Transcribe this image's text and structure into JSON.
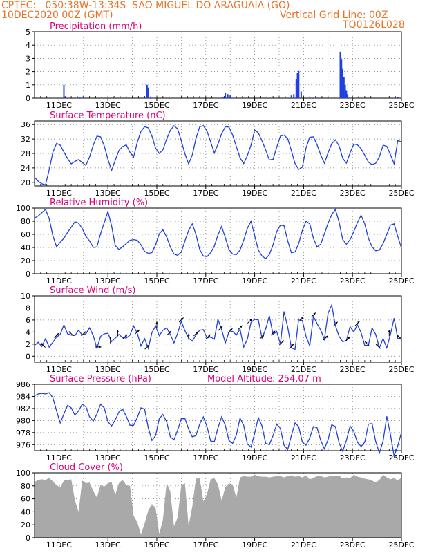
{
  "header": {
    "line1": "CPTEC:   050:38W-13:34S  SAO MIGUEL DO ARAGUAIA (GO)",
    "line2_left": "10DEC2020 00Z (GMT)",
    "line2_right": "Vertical Grid Line: 00Z",
    "line3_right": "TQ0126L028"
  },
  "colors": {
    "title": "#e0007a",
    "header": "#e8742a",
    "line": "#1f3fe0",
    "bar": "#1f3fe0",
    "cloud": "#a9a9a9",
    "arrow": "#000000"
  },
  "x_ticks": [
    "11DEC",
    "13DEC",
    "15DEC",
    "17DEC",
    "19DEC",
    "21DEC",
    "23DEC",
    "25DEC"
  ],
  "chart_data": [
    {
      "id": "precip",
      "type": "bar",
      "title": "Precipitation (mm/h)",
      "ylim": [
        0,
        5
      ],
      "yticks": [
        0,
        1,
        2,
        3,
        4,
        5
      ],
      "x_days": [
        1.2,
        1.85,
        2.0,
        4.6,
        4.65,
        7.7,
        7.8,
        7.9,
        8.0,
        10.5,
        10.6,
        10.7,
        10.75,
        10.8,
        10.9,
        11.5,
        12.5,
        12.55,
        12.6,
        12.65,
        12.7,
        12.75,
        12.8,
        14.85
      ],
      "values": [
        1.0,
        0.05,
        0.15,
        1.0,
        0.8,
        0.1,
        0.4,
        0.3,
        0.2,
        0.2,
        0.3,
        1.4,
        1.9,
        2.1,
        0.5,
        0.15,
        3.5,
        2.9,
        2.2,
        1.6,
        1.0,
        0.6,
        0.3,
        0.1
      ]
    },
    {
      "id": "temp",
      "type": "line",
      "title": "Surface Temperature (nC)",
      "ylim": [
        19,
        37
      ],
      "yticks": [
        20,
        24,
        28,
        32,
        36
      ],
      "x_days": [
        0.0,
        0.15,
        0.3,
        0.45,
        0.6,
        0.75,
        0.9,
        1.05,
        1.2,
        1.35,
        1.5,
        1.65,
        1.8,
        1.95,
        2.1,
        2.25,
        2.4,
        2.55,
        2.7,
        2.85,
        3.0,
        3.15,
        3.3,
        3.45,
        3.6,
        3.75,
        3.9,
        4.05,
        4.2,
        4.35,
        4.5,
        4.65,
        4.8,
        4.95,
        5.1,
        5.25,
        5.4,
        5.55,
        5.7,
        5.85,
        6.0,
        6.15,
        6.3,
        6.45,
        6.6,
        6.75,
        6.9,
        7.05,
        7.2,
        7.35,
        7.5,
        7.65,
        7.8,
        7.95,
        8.1,
        8.25,
        8.4,
        8.55,
        8.7,
        8.85,
        9.0,
        9.15,
        9.3,
        9.45,
        9.6,
        9.75,
        9.9,
        10.05,
        10.2,
        10.35,
        10.5,
        10.65,
        10.8,
        10.95,
        11.1,
        11.25,
        11.4,
        11.55,
        11.7,
        11.85,
        12.0,
        12.15,
        12.3,
        12.45,
        12.6,
        12.75,
        12.9,
        13.05,
        13.2,
        13.35,
        13.5,
        13.65,
        13.8,
        13.95,
        14.1,
        14.25,
        14.4,
        14.55,
        14.7,
        14.85,
        15.0
      ],
      "values": [
        21.4,
        20.3,
        19.6,
        19.3,
        23.5,
        28.3,
        30.8,
        30.3,
        28.4,
        26.6,
        25.1,
        25.8,
        26.3,
        25.5,
        24.7,
        27.0,
        30.3,
        32.8,
        32.6,
        30.1,
        26.4,
        23.3,
        26.1,
        28.8,
        29.9,
        30.4,
        28.3,
        27.0,
        31.1,
        34.1,
        35.4,
        35.1,
        32.8,
        29.5,
        28.0,
        29.0,
        32.0,
        34.4,
        35.7,
        34.8,
        31.5,
        27.9,
        25.1,
        27.6,
        32.1,
        35.4,
        35.7,
        34.2,
        31.2,
        28.1,
        30.6,
        33.5,
        35.4,
        35.3,
        33.1,
        29.9,
        26.8,
        25.2,
        27.4,
        30.3,
        34.5,
        33.7,
        31.5,
        29.0,
        26.2,
        26.4,
        29.7,
        32.8,
        33.1,
        32.1,
        28.8,
        25.2,
        23.6,
        24.2,
        29.5,
        32.5,
        32.6,
        30.4,
        27.6,
        25.3,
        28.2,
        30.7,
        31.8,
        30.1,
        26.7,
        25.3,
        28.2,
        30.6,
        30.4,
        29.3,
        27.5,
        25.6,
        24.9,
        25.3,
        27.1,
        30.3,
        30.0,
        27.7,
        25.1,
        31.6,
        31.2
      ]
    },
    {
      "id": "rh",
      "type": "line",
      "title": "Relative Humidity (%)",
      "ylim": [
        0,
        100
      ],
      "yticks": [
        0,
        20,
        40,
        60,
        80,
        100
      ],
      "x_days": [
        0.0,
        0.15,
        0.3,
        0.45,
        0.6,
        0.75,
        0.9,
        1.05,
        1.2,
        1.35,
        1.5,
        1.65,
        1.8,
        1.95,
        2.1,
        2.25,
        2.4,
        2.55,
        2.7,
        2.85,
        3.0,
        3.15,
        3.3,
        3.45,
        3.6,
        3.75,
        3.9,
        4.05,
        4.2,
        4.35,
        4.5,
        4.65,
        4.8,
        4.95,
        5.1,
        5.25,
        5.4,
        5.55,
        5.7,
        5.85,
        6.0,
        6.15,
        6.3,
        6.45,
        6.6,
        6.75,
        6.9,
        7.05,
        7.2,
        7.35,
        7.5,
        7.65,
        7.8,
        7.95,
        8.1,
        8.25,
        8.4,
        8.55,
        8.7,
        8.85,
        9.0,
        9.15,
        9.3,
        9.45,
        9.6,
        9.75,
        9.9,
        10.05,
        10.2,
        10.35,
        10.5,
        10.65,
        10.8,
        10.95,
        11.1,
        11.25,
        11.4,
        11.55,
        11.7,
        11.85,
        12.0,
        12.15,
        12.3,
        12.45,
        12.6,
        12.75,
        12.9,
        13.05,
        13.2,
        13.35,
        13.5,
        13.65,
        13.8,
        13.95,
        14.1,
        14.25,
        14.4,
        14.55,
        14.7,
        14.85,
        15.0
      ],
      "values": [
        85,
        88,
        93,
        98,
        84,
        58,
        41,
        48,
        54,
        63,
        71,
        79,
        77,
        69,
        57,
        50,
        40,
        41,
        61,
        78,
        95,
        73,
        43,
        37,
        41,
        46,
        51,
        52,
        51,
        44,
        34,
        31,
        32,
        44,
        61,
        67,
        56,
        41,
        30,
        28,
        33,
        50,
        66,
        76,
        60,
        37,
        27,
        26,
        32,
        42,
        59,
        72,
        55,
        37,
        30,
        29,
        36,
        51,
        69,
        80,
        58,
        36,
        27,
        23,
        29,
        44,
        64,
        74,
        73,
        50,
        32,
        33,
        46,
        66,
        80,
        76,
        54,
        41,
        45,
        61,
        77,
        90,
        98,
        79,
        52,
        45,
        52,
        64,
        78,
        89,
        76,
        54,
        41,
        35,
        36,
        46,
        60,
        74,
        76,
        57,
        39
      ]
    },
    {
      "id": "wind",
      "type": "line",
      "title": "Surface Wind (m/s)",
      "ylim": [
        -1,
        10
      ],
      "yticks": [
        0,
        2,
        4,
        6,
        8,
        10
      ],
      "x_days": [
        0.0,
        0.15,
        0.3,
        0.45,
        0.6,
        0.75,
        0.9,
        1.05,
        1.2,
        1.35,
        1.5,
        1.65,
        1.8,
        1.95,
        2.1,
        2.25,
        2.4,
        2.55,
        2.7,
        2.85,
        3.0,
        3.15,
        3.3,
        3.45,
        3.6,
        3.75,
        3.9,
        4.05,
        4.2,
        4.35,
        4.5,
        4.65,
        4.8,
        4.95,
        5.1,
        5.25,
        5.4,
        5.55,
        5.7,
        5.85,
        6.0,
        6.15,
        6.3,
        6.45,
        6.6,
        6.75,
        6.9,
        7.05,
        7.2,
        7.35,
        7.5,
        7.65,
        7.8,
        7.95,
        8.1,
        8.25,
        8.4,
        8.55,
        8.7,
        8.85,
        9.0,
        9.15,
        9.3,
        9.45,
        9.6,
        9.75,
        9.9,
        10.05,
        10.2,
        10.35,
        10.5,
        10.65,
        10.8,
        10.95,
        11.1,
        11.25,
        11.4,
        11.55,
        11.7,
        11.85,
        12.0,
        12.15,
        12.3,
        12.45,
        12.6,
        12.75,
        12.9,
        13.05,
        13.2,
        13.35,
        13.5,
        13.65,
        13.8,
        13.95,
        14.1,
        14.25,
        14.4,
        14.55,
        14.7,
        14.85,
        15.0
      ],
      "values": [
        1.8,
        2.3,
        1.6,
        2.9,
        1.5,
        2.3,
        3.2,
        3.6,
        5.2,
        3.7,
        3.5,
        3.4,
        4.3,
        3.5,
        3.7,
        4.7,
        3.4,
        1.3,
        3.3,
        3.7,
        3.8,
        2.4,
        3.0,
        3.6,
        3.1,
        3.0,
        3.5,
        5.0,
        3.8,
        1.7,
        2.9,
        1.3,
        3.9,
        5.0,
        3.4,
        4.3,
        4.7,
        3.6,
        2.2,
        3.8,
        5.8,
        4.2,
        3.0,
        2.5,
        3.5,
        4.3,
        4.4,
        3.0,
        3.2,
        2.8,
        6.1,
        4.4,
        2.2,
        4.0,
        4.1,
        3.5,
        4.5,
        1.5,
        2.8,
        5.6,
        6.1,
        6.0,
        3.0,
        4.5,
        6.7,
        3.6,
        4.1,
        2.0,
        7.4,
        4.8,
        1.4,
        1.1,
        6.2,
        5.9,
        3.3,
        1.7,
        6.6,
        5.4,
        4.3,
        2.8,
        7.1,
        8.5,
        5.1,
        3.3,
        2.4,
        2.6,
        4.9,
        4.0,
        5.2,
        3.9,
        1.8,
        1.8,
        4.7,
        3.6,
        1.4,
        2.9,
        1.4,
        3.6,
        6.3,
        2.9,
        3.1
      ],
      "arrow_days": [
        0.35,
        0.9,
        1.5,
        2.0,
        2.6,
        3.1,
        3.4,
        3.7,
        4.2,
        4.6,
        5.0,
        5.5,
        6.0,
        6.3,
        6.6,
        7.1,
        7.6,
        8.0,
        8.4,
        8.8,
        9.3,
        9.75,
        10.1,
        10.5,
        10.9,
        11.4,
        11.9,
        12.3,
        12.8,
        13.2,
        13.6,
        14.05,
        14.5,
        14.9
      ],
      "arrow_dirs": [
        135,
        45,
        135,
        45,
        0,
        90,
        90,
        45,
        45,
        45,
        90,
        45,
        45,
        90,
        45,
        45,
        45,
        45,
        45,
        45,
        45,
        45,
        45,
        45,
        45,
        45,
        45,
        45,
        45,
        45,
        135,
        135,
        90,
        135
      ]
    },
    {
      "id": "pressure",
      "type": "line",
      "title": "Surface Pressure (hPa)",
      "annotation": "Model Altitude: 254.07 m",
      "ylim": [
        975,
        986
      ],
      "yticks": [
        976,
        978,
        980,
        982,
        984,
        986
      ],
      "x_days": [
        0.0,
        0.15,
        0.3,
        0.45,
        0.6,
        0.75,
        0.9,
        1.05,
        1.2,
        1.35,
        1.5,
        1.65,
        1.8,
        1.95,
        2.1,
        2.25,
        2.4,
        2.55,
        2.7,
        2.85,
        3.0,
        3.15,
        3.3,
        3.45,
        3.6,
        3.75,
        3.9,
        4.05,
        4.2,
        4.35,
        4.5,
        4.65,
        4.8,
        4.95,
        5.1,
        5.25,
        5.4,
        5.55,
        5.7,
        5.85,
        6.0,
        6.15,
        6.3,
        6.45,
        6.6,
        6.75,
        6.9,
        7.05,
        7.2,
        7.35,
        7.5,
        7.65,
        7.8,
        7.95,
        8.1,
        8.25,
        8.4,
        8.55,
        8.7,
        8.85,
        9.0,
        9.15,
        9.3,
        9.45,
        9.6,
        9.75,
        9.9,
        10.05,
        10.2,
        10.35,
        10.5,
        10.65,
        10.8,
        10.95,
        11.1,
        11.25,
        11.4,
        11.55,
        11.7,
        11.85,
        12.0,
        12.15,
        12.3,
        12.45,
        12.6,
        12.75,
        12.9,
        13.05,
        13.2,
        13.35,
        13.5,
        13.65,
        13.8,
        13.95,
        14.1,
        14.25,
        14.4,
        14.55,
        14.7,
        14.85,
        15.0
      ],
      "values": [
        984.1,
        984.4,
        984.5,
        984.4,
        984.6,
        983.8,
        981.6,
        979.6,
        981.1,
        982.5,
        982.1,
        980.9,
        981.6,
        982.7,
        982.3,
        980.6,
        979.9,
        981.1,
        982.7,
        982.1,
        979.8,
        979.1,
        980.1,
        981.4,
        981.9,
        980.7,
        979.2,
        979.2,
        980.5,
        982.1,
        981.9,
        978.8,
        976.7,
        977.5,
        980.3,
        981.0,
        979.8,
        977.3,
        976.8,
        978.4,
        980.3,
        980.3,
        978.6,
        977.3,
        977.5,
        979.4,
        980.6,
        979.0,
        976.6,
        976.5,
        978.8,
        980.6,
        979.2,
        976.7,
        976.2,
        977.6,
        980.4,
        979.2,
        976.1,
        975.6,
        977.9,
        980.5,
        979.1,
        976.2,
        976.0,
        977.5,
        979.4,
        978.7,
        975.9,
        975.2,
        977.5,
        979.6,
        979.0,
        976.4,
        975.9,
        977.1,
        979.0,
        978.8,
        976.7,
        975.3,
        976.8,
        979.3,
        979.0,
        976.3,
        974.9,
        976.7,
        979.1,
        978.2,
        976.4,
        975.7,
        976.4,
        979.4,
        979.5,
        976.5,
        974.6,
        976.6,
        980.7,
        977.7,
        974.1,
        975.8,
        978.0
      ]
    },
    {
      "id": "cloud",
      "type": "area",
      "title": "Cloud Cover (%)",
      "ylim": [
        0,
        100
      ],
      "yticks": [
        0,
        20,
        40,
        60,
        80,
        100
      ],
      "x_days": [
        0.0,
        0.15,
        0.3,
        0.45,
        0.6,
        0.75,
        0.9,
        1.05,
        1.2,
        1.35,
        1.5,
        1.65,
        1.8,
        1.95,
        2.1,
        2.25,
        2.4,
        2.55,
        2.7,
        2.85,
        3.0,
        3.15,
        3.3,
        3.45,
        3.6,
        3.75,
        3.9,
        4.05,
        4.2,
        4.35,
        4.5,
        4.65,
        4.8,
        4.95,
        5.1,
        5.25,
        5.4,
        5.55,
        5.7,
        5.85,
        6.0,
        6.15,
        6.3,
        6.45,
        6.6,
        6.75,
        6.9,
        7.05,
        7.2,
        7.35,
        7.5,
        7.65,
        7.8,
        7.95,
        8.1,
        8.25,
        8.4,
        8.55,
        8.7,
        8.85,
        9.0,
        9.15,
        9.3,
        9.45,
        9.6,
        9.75,
        9.9,
        10.05,
        10.2,
        10.35,
        10.5,
        10.65,
        10.8,
        10.95,
        11.1,
        11.25,
        11.4,
        11.55,
        11.7,
        11.85,
        12.0,
        12.15,
        12.3,
        12.45,
        12.6,
        12.75,
        12.9,
        13.05,
        13.2,
        13.35,
        13.5,
        13.65,
        13.8,
        13.95,
        14.1,
        14.25,
        14.4,
        14.55,
        14.7,
        14.85,
        15.0
      ],
      "values": [
        86,
        89,
        90,
        89,
        92,
        87,
        81,
        78,
        88,
        89,
        90,
        58,
        40,
        88,
        84,
        85,
        72,
        62,
        82,
        79,
        84,
        86,
        66,
        84,
        89,
        81,
        80,
        34,
        24,
        5,
        22,
        42,
        52,
        46,
        6,
        28,
        85,
        71,
        18,
        31,
        81,
        84,
        18,
        48,
        91,
        92,
        56,
        67,
        90,
        92,
        82,
        57,
        78,
        84,
        82,
        62,
        93,
        95,
        94,
        94,
        97,
        95,
        94,
        94,
        93,
        94,
        95,
        95,
        93,
        95,
        96,
        94,
        95,
        93,
        96,
        90,
        92,
        95,
        95,
        93,
        94,
        96,
        95,
        96,
        91,
        93,
        92,
        97,
        94,
        93,
        91,
        90,
        88,
        85,
        89,
        97,
        93,
        90,
        92,
        88,
        93
      ]
    }
  ]
}
